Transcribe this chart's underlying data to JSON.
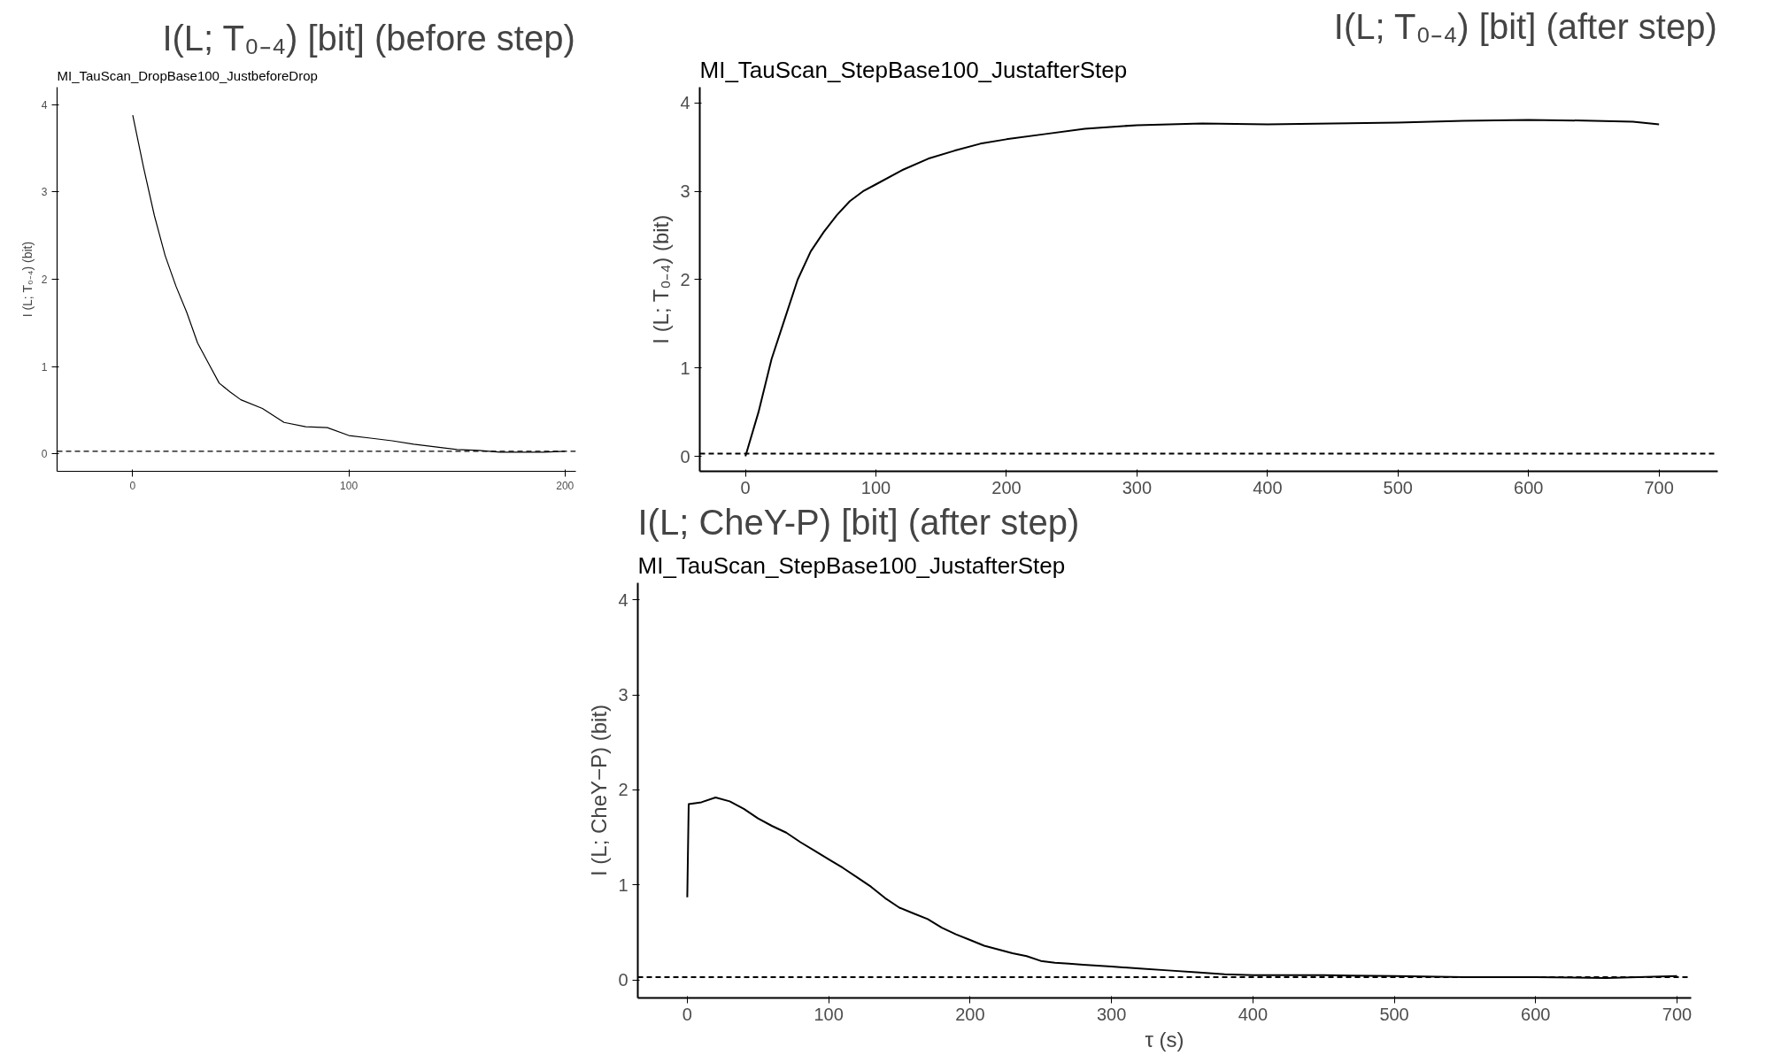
{
  "chart_data": [
    {
      "type": "line",
      "title": "MI_TauScan_DropBase100_JustbeforeDrop",
      "ylabel": "I (L; T₀₋₄) (bit)",
      "annotations": [
        "I(L; T₀₋₄) [bit] (before step)"
      ],
      "grid": false,
      "line_style": "solid",
      "color": "#000000",
      "x": [
        0,
        5,
        10,
        15,
        20,
        25,
        30,
        35,
        40,
        45,
        50,
        60,
        70,
        80,
        90,
        100,
        110,
        120,
        130,
        140,
        150,
        160,
        170,
        180,
        190,
        200
      ],
      "values": [
        3.88,
        3.28,
        2.73,
        2.27,
        1.92,
        1.62,
        1.27,
        1.04,
        0.81,
        0.71,
        0.62,
        0.52,
        0.36,
        0.31,
        0.3,
        0.21,
        0.18,
        0.15,
        0.11,
        0.08,
        0.05,
        0.04,
        0.02,
        0.02,
        0.02,
        0.03
      ],
      "xlim": [
        -35,
        205
      ],
      "ylim": [
        -0.2,
        4.2
      ],
      "xticks": [
        0,
        100,
        200
      ],
      "yticks": [
        0,
        1,
        2,
        3,
        4
      ],
      "ref_lines": [
        {
          "axis": "y",
          "value": 0.03,
          "line_style": "dashed",
          "color": "#000000"
        }
      ]
    },
    {
      "type": "line",
      "title": "MI_TauScan_StepBase100_JustafterStep",
      "ylabel": "I (L; T₀₋₄) (bit)",
      "annotations": [
        "I(L; T₀₋₄) [bit] (after step)"
      ],
      "grid": false,
      "line_style": "solid",
      "color": "#000000",
      "x": [
        0,
        10,
        20,
        30,
        40,
        50,
        60,
        70,
        80,
        90,
        100,
        120,
        140,
        160,
        180,
        200,
        230,
        260,
        300,
        350,
        400,
        450,
        500,
        550,
        600,
        650,
        680,
        700
      ],
      "values": [
        0,
        0.5,
        1.1,
        1.55,
        2.0,
        2.32,
        2.54,
        2.73,
        2.89,
        3.0,
        3.08,
        3.24,
        3.37,
        3.46,
        3.54,
        3.59,
        3.65,
        3.71,
        3.75,
        3.77,
        3.76,
        3.77,
        3.78,
        3.8,
        3.81,
        3.8,
        3.79,
        3.76
      ],
      "xlim": [
        -35,
        745
      ],
      "ylim": [
        -0.17,
        4.18
      ],
      "xticks": [
        0,
        100,
        200,
        300,
        400,
        500,
        600,
        700
      ],
      "yticks": [
        0,
        1,
        2,
        3,
        4
      ],
      "ref_lines": [
        {
          "axis": "y",
          "value": 0.03,
          "line_style": "dashed",
          "color": "#000000"
        }
      ]
    },
    {
      "type": "line",
      "title": "MI_TauScan_StepBase100_JustafterStep",
      "xlabel": "τ (s)",
      "ylabel": "I (L; CheY−P) (bit)",
      "annotations": [
        "I(L; CheY-P) [bit] (after step)"
      ],
      "grid": false,
      "line_style": "solid",
      "color": "#000000",
      "x": [
        0,
        1,
        10,
        20,
        30,
        40,
        50,
        60,
        70,
        80,
        90,
        100,
        110,
        120,
        130,
        140,
        150,
        160,
        170,
        180,
        190,
        200,
        210,
        220,
        230,
        240,
        250,
        260,
        270,
        280,
        300,
        320,
        340,
        360,
        380,
        400,
        450,
        500,
        550,
        600,
        650,
        700
      ],
      "values": [
        0.87,
        1.85,
        1.87,
        1.92,
        1.88,
        1.8,
        1.7,
        1.62,
        1.55,
        1.45,
        1.36,
        1.27,
        1.18,
        1.08,
        0.98,
        0.86,
        0.76,
        0.7,
        0.64,
        0.55,
        0.48,
        0.42,
        0.36,
        0.32,
        0.28,
        0.25,
        0.2,
        0.18,
        0.17,
        0.16,
        0.14,
        0.12,
        0.1,
        0.08,
        0.06,
        0.05,
        0.05,
        0.04,
        0.03,
        0.03,
        0.02,
        0.04
      ],
      "xlim": [
        -35,
        710
      ],
      "ylim": [
        -0.19,
        4.18
      ],
      "xticks": [
        0,
        100,
        200,
        300,
        400,
        500,
        600,
        700
      ],
      "yticks": [
        0,
        1,
        2,
        3,
        4
      ],
      "ref_lines": [
        {
          "axis": "y",
          "value": 0.03,
          "line_style": "dashed",
          "color": "#000000"
        }
      ]
    }
  ]
}
